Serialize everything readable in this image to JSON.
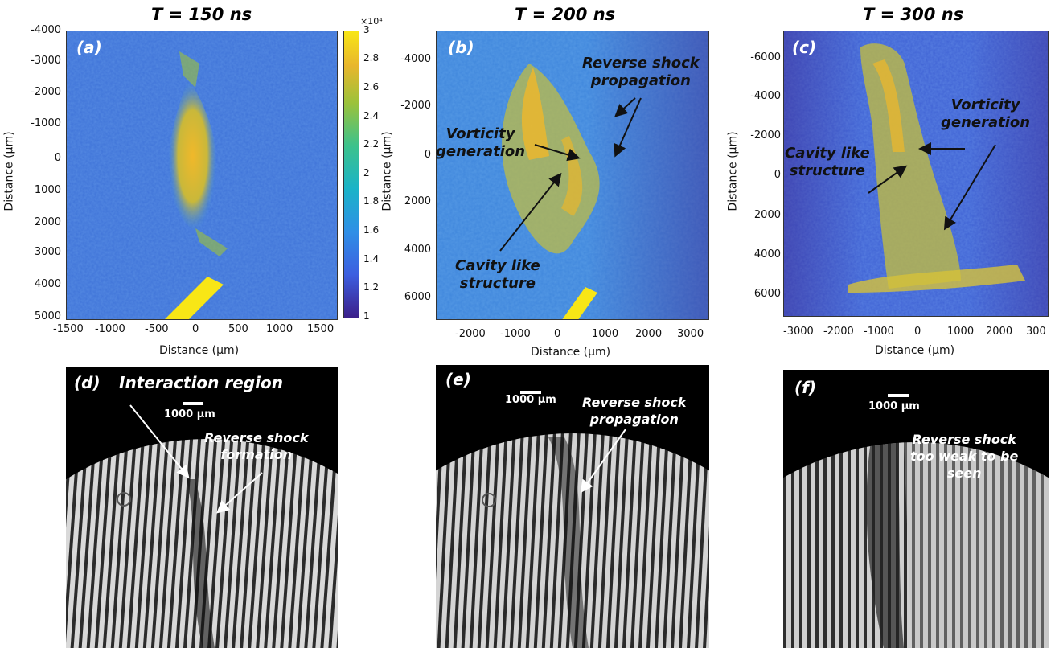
{
  "panels_top": [
    {
      "title": "T = 150 ns",
      "tag": "(a)",
      "y_ticks": [
        "-4000",
        "-3000",
        "-2000",
        "-1000",
        "0",
        "1000",
        "2000",
        "3000",
        "4000",
        "5000"
      ],
      "x_ticks": [
        "-1500",
        "-1000",
        "-500",
        "0",
        "500",
        "1000",
        "1500"
      ],
      "ylabel": "Distance (μm)",
      "xlabel": "Distance (μm)"
    },
    {
      "title": "T = 200 ns",
      "tag": "(b)",
      "y_ticks": [
        "-4000",
        "-2000",
        "0",
        "2000",
        "4000",
        "6000"
      ],
      "x_ticks": [
        "-2000",
        "-1000",
        "0",
        "1000",
        "2000",
        "3000"
      ],
      "ylabel": "Distance (μm)",
      "xlabel": "Distance (μm)",
      "annotations": {
        "reverse_shock": [
          "Reverse shock",
          "propagation"
        ],
        "vorticity": [
          "Vorticity",
          "generation"
        ],
        "cavity": [
          "Cavity like",
          "structure"
        ]
      }
    },
    {
      "title": "T = 300 ns",
      "tag": "(c)",
      "y_ticks": [
        "-6000",
        "-4000",
        "-2000",
        "0",
        "2000",
        "4000",
        "6000"
      ],
      "x_ticks": [
        "-3000",
        "-2000",
        "-1000",
        "0",
        "1000",
        "2000",
        "300"
      ],
      "ylabel": "Distance (μm)",
      "xlabel": "Distance (μm)",
      "annotations": {
        "vorticity": [
          "Vorticity",
          "generation"
        ],
        "cavity": [
          "Cavity like",
          "structure"
        ]
      }
    }
  ],
  "colorbar": {
    "exponent": "×10⁴",
    "ticks": [
      "3",
      "2.8",
      "2.6",
      "2.4",
      "2.2",
      "2",
      "1.8",
      "1.6",
      "1.4",
      "1.2",
      "1"
    ],
    "colormap": [
      "#3b1f8a",
      "#3d5fe0",
      "#2f8fe6",
      "#1ab3c8",
      "#3cc28c",
      "#9cc23a",
      "#e8b62c",
      "#f8e616"
    ]
  },
  "panels_bottom": [
    {
      "tag": "(d)",
      "scale": "1000 μm",
      "title": "Interaction region",
      "annotation": [
        "Reverse shock",
        "formation"
      ]
    },
    {
      "tag": "(e)",
      "scale": "1000 μm",
      "annotation": [
        "Reverse shock",
        "propagation"
      ]
    },
    {
      "tag": "(f)",
      "scale": "1000 μm",
      "annotation": [
        "Reverse shock",
        "too weak to be",
        "seen"
      ]
    }
  ]
}
